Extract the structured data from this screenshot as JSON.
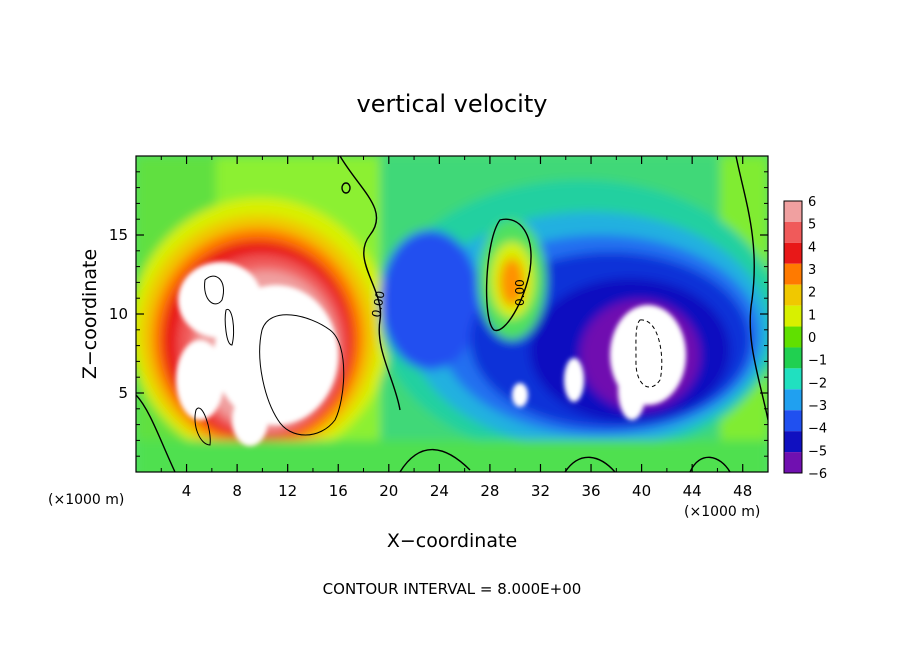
{
  "chart_data": {
    "type": "heatmap",
    "title": "vertical velocity",
    "xlabel": "X−coordinate",
    "ylabel": "Z−coordinate",
    "x_unit": "(×1000 m)",
    "x_unit_right": "(×1000 m)",
    "xlim": [
      0,
      50
    ],
    "ylim": [
      0,
      20
    ],
    "x_ticks": [
      "4",
      "8",
      "12",
      "16",
      "20",
      "24",
      "28",
      "32",
      "36",
      "40",
      "44",
      "48"
    ],
    "y_ticks": [
      "5",
      "10",
      "15"
    ],
    "colorbar": {
      "labels": [
        "6",
        "5",
        "4",
        "3",
        "2",
        "1",
        "0",
        "−1",
        "−2",
        "−3",
        "−4",
        "−5",
        "−6"
      ],
      "colors": [
        "#f0a0a0",
        "#f05a5a",
        "#e81818",
        "#ff7a00",
        "#f0c800",
        "#d8f000",
        "#60e000",
        "#20d050",
        "#20e0c0",
        "#20a0f0",
        "#2050f0",
        "#1010c0",
        "#7010b0"
      ]
    },
    "contour_labels": [
      "0.00",
      "0.00"
    ],
    "footer": "CONTOUR INTERVAL = 8.000E+00",
    "features": [
      {
        "x": 8.5,
        "z": 9.5,
        "w": 8,
        "kind": "updraft-core"
      },
      {
        "x": 30,
        "z": 12,
        "w": 3,
        "kind": "updraft"
      },
      {
        "x": 40,
        "z": 8,
        "w": -8,
        "kind": "downdraft-core"
      },
      {
        "x": 35,
        "z": 5,
        "w": -7,
        "kind": "downdraft"
      },
      {
        "x": 25,
        "z": 10,
        "w": -4.5,
        "kind": "downdraft"
      }
    ]
  }
}
